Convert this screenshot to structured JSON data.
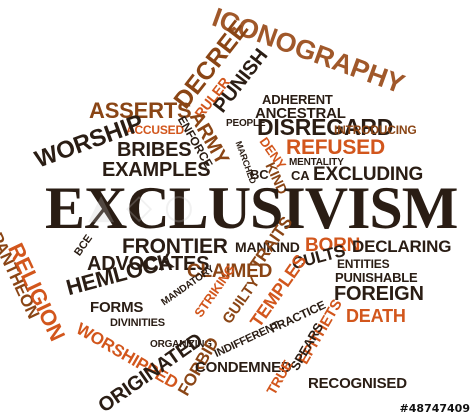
{
  "colors": {
    "dark": "#2a1d14",
    "brown": "#8a4515",
    "orange": "#d2561c",
    "tan": "#a5642e"
  },
  "words": {
    "iconography": "ICONOGRAPHY",
    "decree": "DECREE",
    "punish": "PUNISH",
    "asserts": "ASSERTS",
    "ruler": "RULER",
    "adherent": "ADHERENT",
    "ancestral": "ANCESTRAL",
    "people": "PEOPLE",
    "disregard": "DISREGARD",
    "introducing": "INTRODUCING",
    "accused": "ACCUSED",
    "enforce": "ENFORCE",
    "army": "ARMY",
    "refused": "REFUSED",
    "worship": "WORSHIP",
    "bribes": "BRIBES",
    "marched": "MARCHED",
    "deny": "DENY",
    "mentality": "MENTALITY",
    "examples": "EXAMPLES",
    "bc": "BC",
    "kind": "KIND",
    "ca": "CA",
    "excluding": "EXCLUDING",
    "exclusivism": "EXCLUSIVISM",
    "frontier": "FRONTIER",
    "mankind": "MANKIND",
    "born": "BORN",
    "declaring": "DECLARING",
    "pantheon": "PANTHEON",
    "religion": "RELIGION",
    "bce": "BCE",
    "advocates": "ADVOCATES",
    "claimed": "CLAIMED",
    "entities": "ENTITIES",
    "hemlock": "HEMLOCK",
    "traits": "TRAITS",
    "cults": "CULTS",
    "punishable": "PUNISHABLE",
    "mandatory": "MANDATORY",
    "forms": "FORMS",
    "striking": "STRIKING",
    "guilty": "GUILTY",
    "temples": "TEMPLES",
    "foreign": "FOREIGN",
    "divinities": "DIVINITIES",
    "epithets": "EPITHETS",
    "practice": "PRACTICE",
    "death": "DEATH",
    "worshipped": "WORSHIPPED",
    "organizing": "ORGANIZING",
    "indifferent": "INDIFFERENT",
    "spears": "SPEARS",
    "originated": "ORIGINATED",
    "forbid": "FORBID",
    "condemned": "CONDEMNED",
    "true": "TRUE",
    "recognised": "RECOGNISED"
  },
  "stock_id": "#48747409"
}
